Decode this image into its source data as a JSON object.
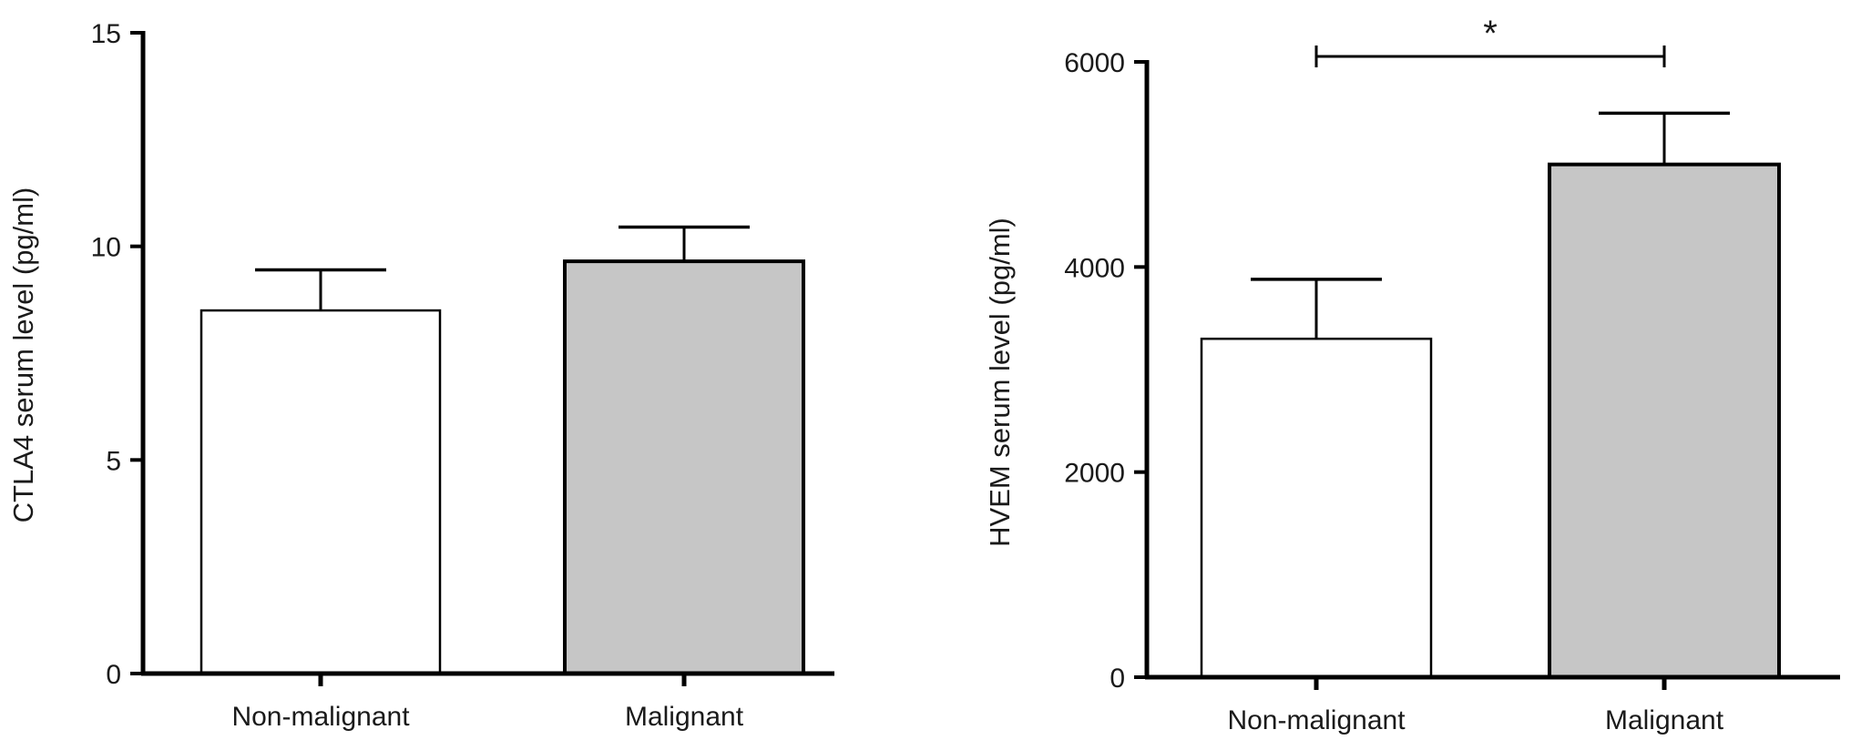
{
  "chart_data": [
    {
      "type": "bar",
      "categories": [
        "Non-malignant",
        "Malignant"
      ],
      "values": [
        8.5,
        9.65
      ],
      "error_upper": [
        9.45,
        10.45
      ],
      "bar_colors": [
        "#ffffff",
        "#c6c6c6"
      ],
      "ylabel": "CTLA4 serum level (pg/ml)",
      "ylim": [
        0,
        15
      ],
      "yticks": [
        0,
        5,
        10,
        15
      ],
      "ytick_labels": [
        "0",
        "5",
        "10",
        "15"
      ],
      "significance": null
    },
    {
      "type": "bar",
      "categories": [
        "Non-malignant",
        "Malignant"
      ],
      "values": [
        3300,
        5000
      ],
      "error_upper": [
        3880,
        5500
      ],
      "bar_colors": [
        "#ffffff",
        "#c6c6c6"
      ],
      "ylabel": "HVEM serum level (pg/ml)",
      "ylim": [
        0,
        6000
      ],
      "yticks": [
        0,
        2000,
        4000,
        6000
      ],
      "ytick_labels": [
        "0",
        "2000",
        "4000",
        "6000"
      ],
      "significance": {
        "from": 0,
        "to": 1,
        "value": 6000,
        "label": "*"
      }
    }
  ]
}
